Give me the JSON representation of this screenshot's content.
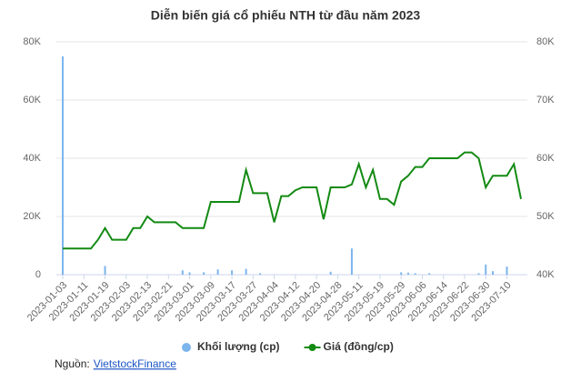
{
  "chart_data": {
    "type": "bar-line",
    "title": "Diễn biến giá cổ phiếu NTH từ đầu năm 2023",
    "categories": [
      "2023-01-03",
      null,
      null,
      "2023-01-11",
      null,
      null,
      "2023-01-19",
      null,
      null,
      "2023-02-03",
      null,
      null,
      "2023-02-13",
      null,
      null,
      "2023-02-21",
      null,
      null,
      "2023-03-01",
      null,
      null,
      "2023-03-09",
      null,
      null,
      "2023-03-17",
      null,
      null,
      "2023-03-27",
      null,
      null,
      "2023-04-04",
      null,
      null,
      "2023-04-12",
      null,
      null,
      "2023-04-20",
      null,
      null,
      "2023-04-28",
      null,
      null,
      "2023-05-11",
      null,
      null,
      "2023-05-19",
      null,
      null,
      "2023-05-29",
      null,
      null,
      "2023-06-06",
      null,
      null,
      "2023-06-14",
      null,
      null,
      "2023-06-22",
      null,
      null,
      "2023-06-30",
      null,
      null,
      "2023-07-10",
      null,
      null
    ],
    "series": [
      {
        "name": "Khối lượng (cp)",
        "color": "#7cb5ec",
        "type": "bar",
        "axis": "y",
        "values": [
          75000,
          0,
          0,
          0,
          0,
          0,
          3000,
          0,
          0,
          0,
          0,
          0,
          0,
          0,
          0,
          0,
          0,
          1500,
          800,
          0,
          800,
          0,
          1800,
          0,
          1500,
          0,
          2000,
          0,
          500,
          0,
          0,
          0,
          0,
          0,
          0,
          0,
          0,
          0,
          1000,
          0,
          0,
          9000,
          0,
          0,
          0,
          0,
          0,
          0,
          800,
          700,
          500,
          0,
          500,
          0,
          0,
          0,
          0,
          0,
          0,
          500,
          3500,
          1200,
          0,
          2800,
          0,
          0
        ]
      },
      {
        "name": "Giá (đồng/cp)",
        "color": "#138a13",
        "type": "line",
        "axis": "y2",
        "values": [
          44500,
          44500,
          44500,
          44500,
          44500,
          46000,
          48000,
          46000,
          46000,
          46000,
          48000,
          48000,
          50000,
          49000,
          49000,
          49000,
          49000,
          48000,
          48000,
          48000,
          48000,
          52500,
          52500,
          52500,
          52500,
          52500,
          58000,
          54000,
          54000,
          54000,
          49000,
          53500,
          53500,
          54500,
          55000,
          55000,
          55000,
          49500,
          55000,
          55000,
          55000,
          55500,
          59000,
          55000,
          58000,
          53000,
          53000,
          52000,
          56000,
          57000,
          58500,
          58500,
          60000,
          60000,
          60000,
          60000,
          60000,
          61000,
          61000,
          60000,
          55000,
          57000,
          57000,
          57000,
          59000,
          53000
        ]
      }
    ],
    "ylim": [
      0,
      80000
    ],
    "yticks": [
      0,
      {
        "value": 20000,
        "label": "20K"
      },
      {
        "value": 40000,
        "label": "40K"
      },
      {
        "value": 60000,
        "label": "60K"
      },
      {
        "value": 80000,
        "label": "80K"
      }
    ],
    "y2lim": [
      40000,
      80000
    ],
    "y2ticks": [
      {
        "value": 40000,
        "label": "40K"
      },
      {
        "value": 50000,
        "label": "50K"
      },
      {
        "value": 60000,
        "label": "60K"
      },
      {
        "value": 70000,
        "label": "70K"
      },
      {
        "value": 80000,
        "label": "80K"
      }
    ],
    "grid": true
  },
  "source": {
    "label": "Nguồn:",
    "link": "VietstockFinance"
  }
}
